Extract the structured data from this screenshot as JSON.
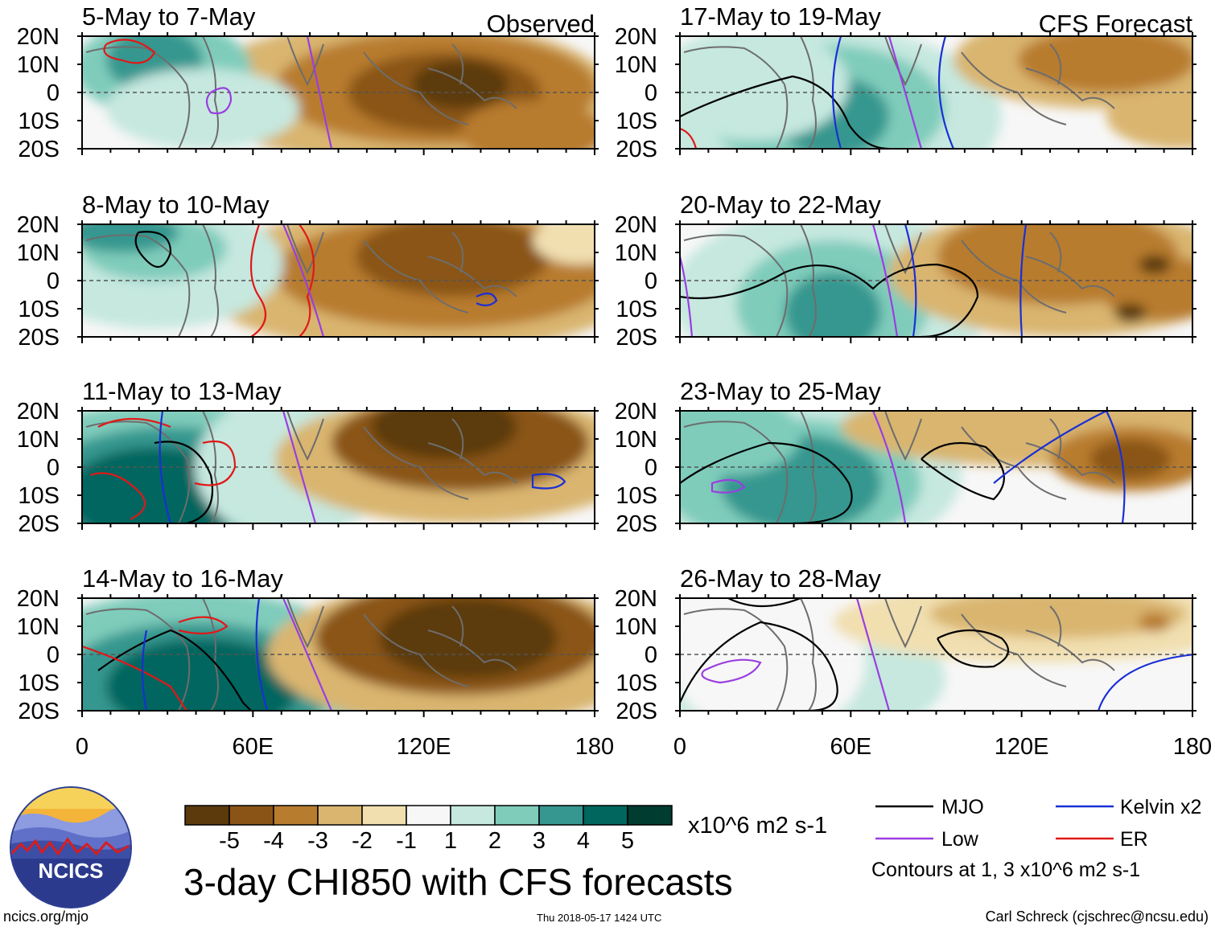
{
  "panels": [
    {
      "title": "5-May to 7-May",
      "label": "Observed"
    },
    {
      "title": "8-May to 10-May",
      "label": ""
    },
    {
      "title": "11-May to 13-May",
      "label": ""
    },
    {
      "title": "14-May to 16-May",
      "label": ""
    },
    {
      "title": "17-May to 19-May",
      "label": "CFS Forecast"
    },
    {
      "title": "20-May to 22-May",
      "label": ""
    },
    {
      "title": "23-May to 25-May",
      "label": ""
    },
    {
      "title": "26-May to 28-May",
      "label": ""
    }
  ],
  "y_ticks": [
    "20N",
    "10N",
    "0",
    "10S",
    "20S"
  ],
  "x_ticks": [
    "0",
    "60E",
    "120E",
    "180"
  ],
  "colorbar": {
    "colors": [
      "#5c3a0c",
      "#8a5417",
      "#b87c2f",
      "#d9b570",
      "#f1dfb0",
      "#f7f7f7",
      "#c6e8df",
      "#7fccbb",
      "#35978f",
      "#01665e",
      "#003c30"
    ],
    "tick_labels": [
      "-5",
      "-4",
      "-3",
      "-2",
      "-1",
      "1",
      "2",
      "3",
      "4",
      "5"
    ],
    "units": "x10^6 m2 s-1"
  },
  "main_title": "3-day CHI850 with CFS forecasts",
  "legend": {
    "items": [
      {
        "label": "MJO",
        "color": "#000000"
      },
      {
        "label": "Kelvin x2",
        "color": "#1a2fd6"
      },
      {
        "label": "Low",
        "color": "#9a3ee0"
      },
      {
        "label": "ER",
        "color": "#e01818"
      }
    ],
    "note": "Contours at 1, 3 x10^6 m2 s-1"
  },
  "logo_text": "NCICS",
  "footer": {
    "left": "ncics.org/mjo",
    "center": "Thu 2018-05-17 1424 UTC",
    "right": "Carl Schreck (cjschrec@ncsu.edu)"
  }
}
